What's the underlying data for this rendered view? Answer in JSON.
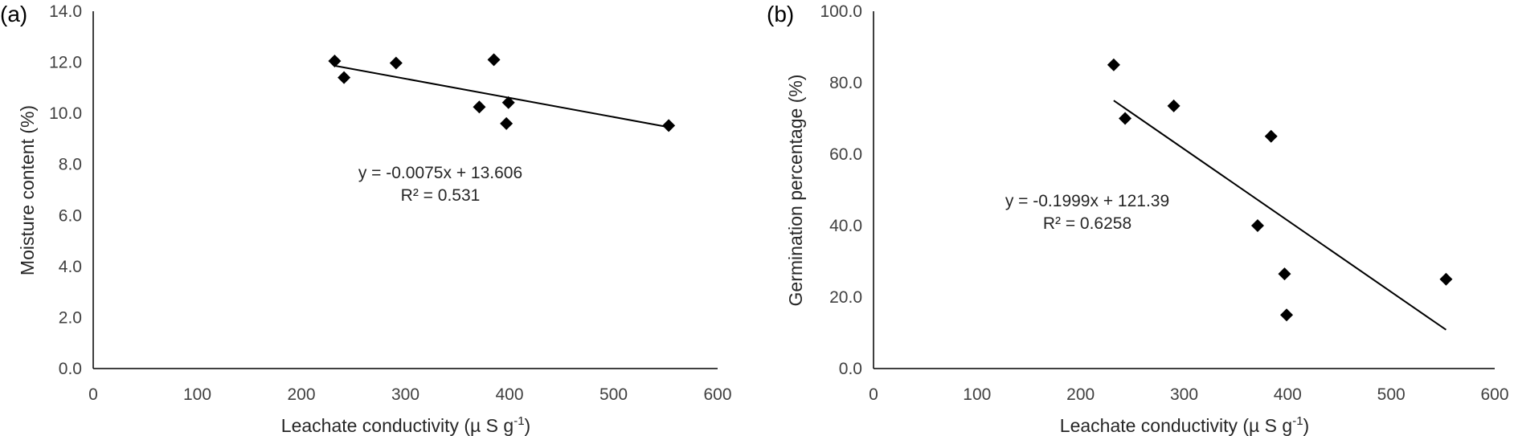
{
  "chart_data": [
    {
      "type": "scatter",
      "panel_label": "(a)",
      "xlabel": {
        "main": "Leachate conductivity (µ S g",
        "sup": "-1",
        "close": ")"
      },
      "ylabel": "Moisture content (%)",
      "xlim": [
        0,
        600
      ],
      "ylim": [
        0,
        14
      ],
      "x_ticks": [
        "0",
        "100",
        "200",
        "300",
        "400",
        "500",
        "600"
      ],
      "y_ticks": [
        "0.0",
        "2.0",
        "4.0",
        "6.0",
        "8.0",
        "10.0",
        "12.0",
        "14.0"
      ],
      "points": [
        {
          "x": 232,
          "y": 12.05
        },
        {
          "x": 241,
          "y": 11.4
        },
        {
          "x": 291,
          "y": 11.97
        },
        {
          "x": 371,
          "y": 10.25
        },
        {
          "x": 385,
          "y": 12.1
        },
        {
          "x": 397,
          "y": 9.6
        },
        {
          "x": 399,
          "y": 10.42
        },
        {
          "x": 553,
          "y": 9.52
        }
      ],
      "trendline": {
        "slope": -0.0075,
        "intercept": 13.606,
        "x_range": [
          232,
          553
        ]
      },
      "equation": "y = -0.0075x + 13.606",
      "r_squared": "R² = 0.531"
    },
    {
      "type": "scatter",
      "panel_label": "(b)",
      "xlabel": {
        "main": "Leachate conductivity (µ S g",
        "sup": "-1",
        "close": ")"
      },
      "ylabel": "Germination percentage (%)",
      "xlim": [
        0,
        600
      ],
      "ylim": [
        0,
        100
      ],
      "x_ticks": [
        "0",
        "100",
        "200",
        "300",
        "400",
        "500",
        "600"
      ],
      "y_ticks": [
        "0.0",
        "20.0",
        "40.0",
        "60.0",
        "80.0",
        "100.0"
      ],
      "points": [
        {
          "x": 232,
          "y": 85
        },
        {
          "x": 243,
          "y": 70
        },
        {
          "x": 290,
          "y": 73.5
        },
        {
          "x": 371,
          "y": 40
        },
        {
          "x": 384,
          "y": 65
        },
        {
          "x": 397,
          "y": 26.5
        },
        {
          "x": 399,
          "y": 15
        },
        {
          "x": 553,
          "y": 25
        }
      ],
      "trendline": {
        "slope": -0.1999,
        "intercept": 121.39,
        "x_range": [
          232,
          553
        ]
      },
      "equation": "y = -0.1999x + 121.39",
      "r_squared": "R² = 0.6258"
    }
  ]
}
